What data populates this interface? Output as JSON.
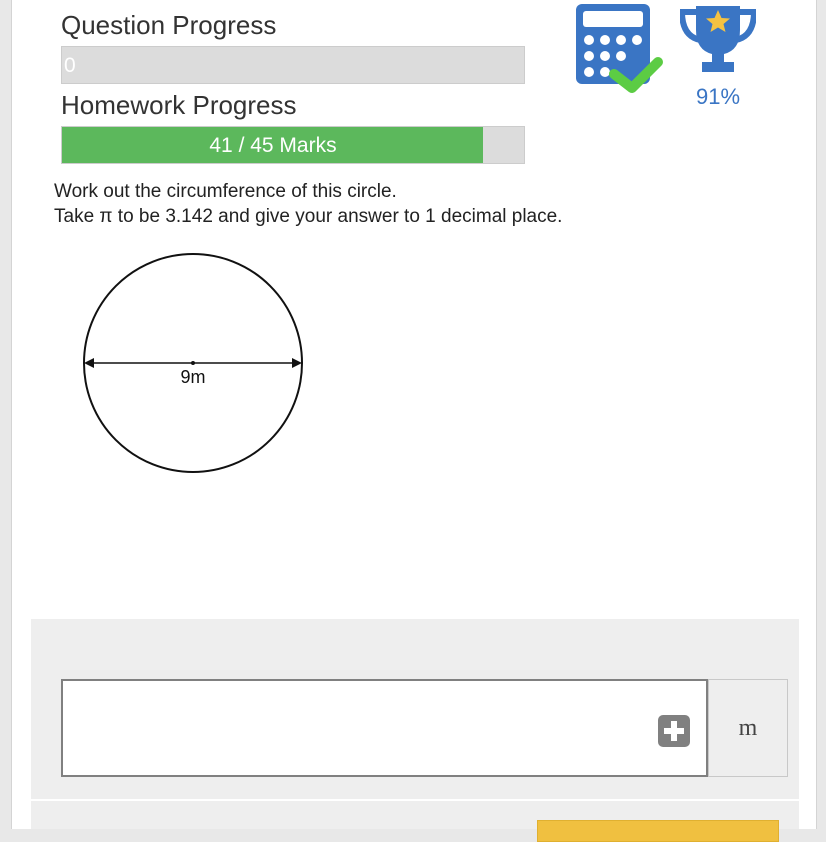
{
  "progress": {
    "question_label": "Question Progress",
    "question_value_text": "0",
    "question_fraction": 0,
    "homework_label": "Homework Progress",
    "homework_text": "41 / 45 Marks",
    "homework_fraction": 0.911,
    "fill_color": "#5cb85c"
  },
  "icons": {
    "calculator": "calculator-check-icon",
    "trophy": "trophy-star-icon",
    "accent_color": "#3a75c4"
  },
  "score_percent": "91%",
  "question": {
    "line1": "Work out the circumference of this circle.",
    "line2": "Take π to be 3.142 and give your answer to 1 decimal place.",
    "diagram_label": "9m"
  },
  "answer": {
    "value": "",
    "unit": "m"
  }
}
